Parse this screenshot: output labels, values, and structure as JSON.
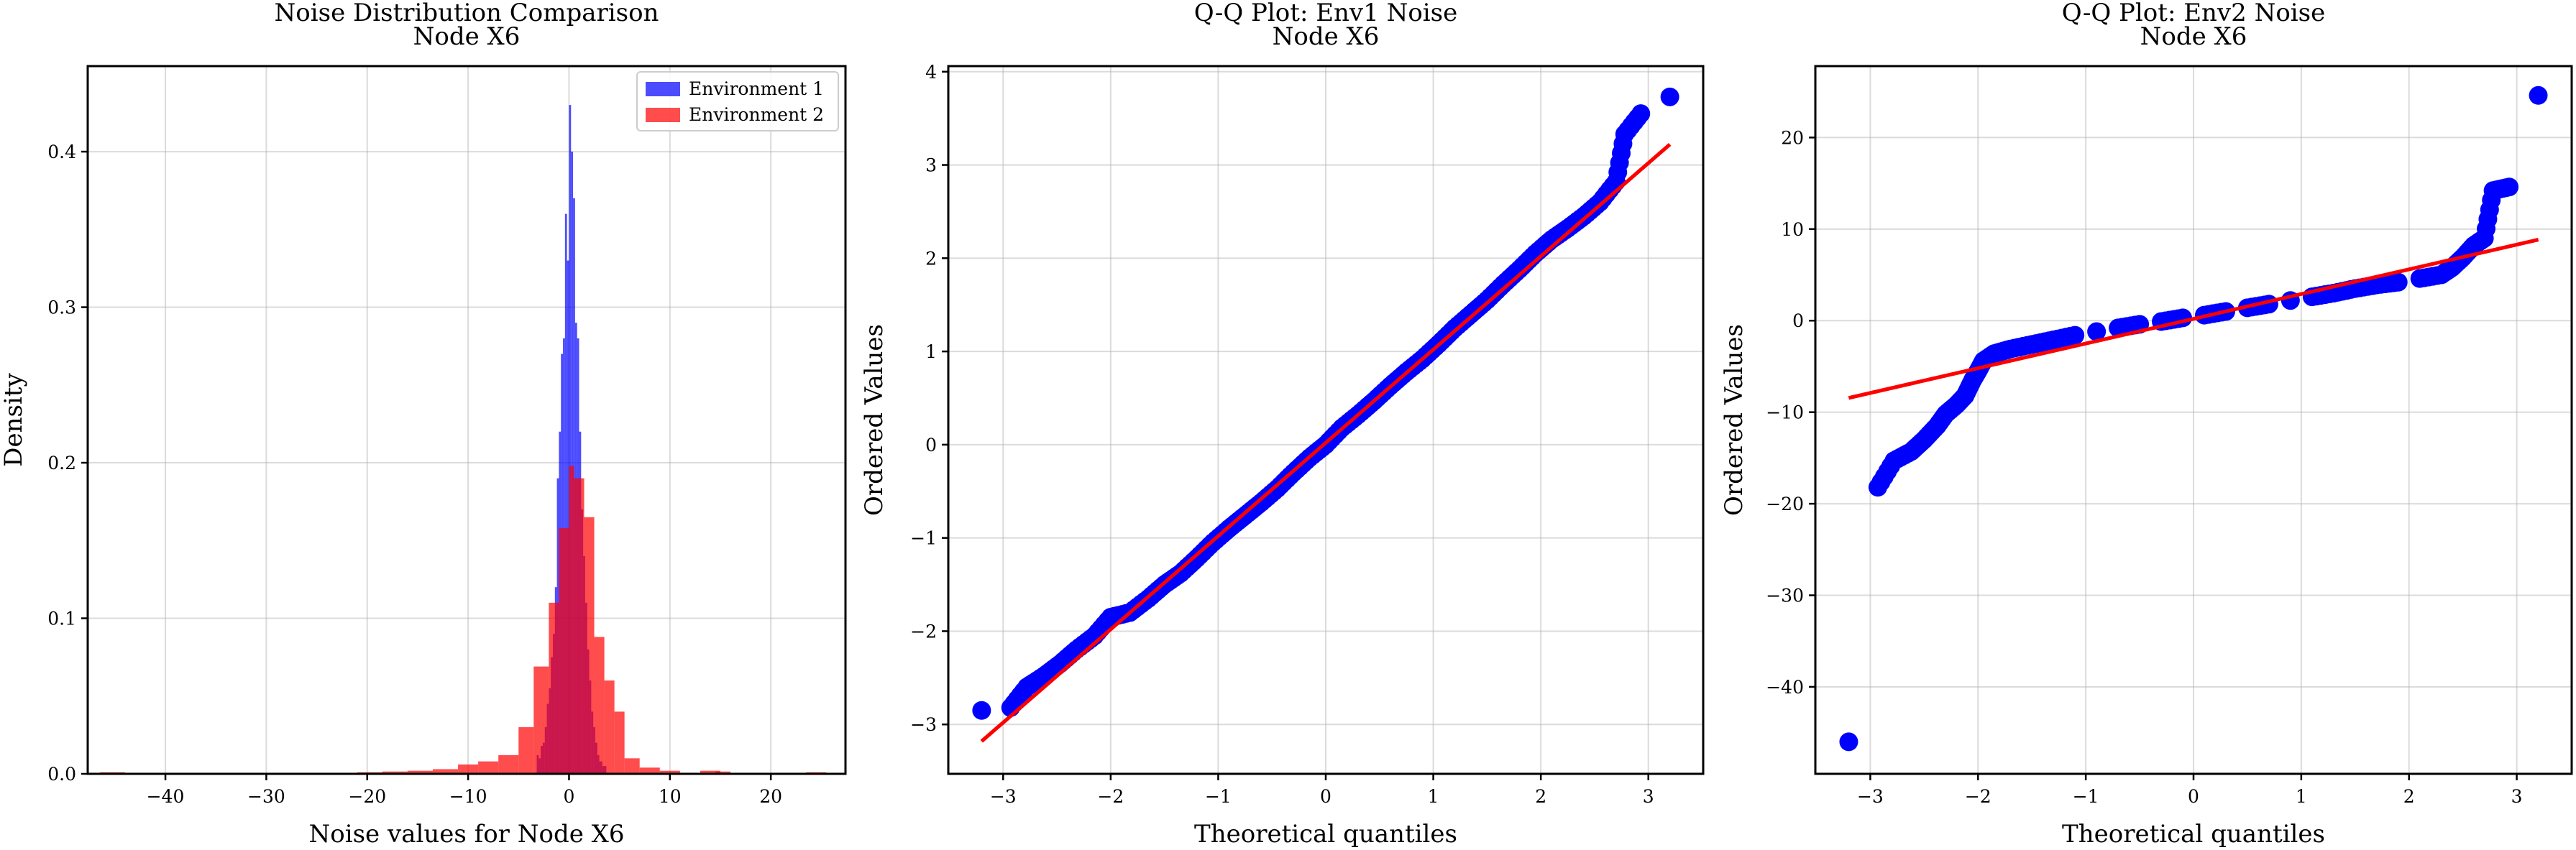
{
  "chart_data": [
    {
      "type": "histogram",
      "title": [
        "Noise Distribution Comparison",
        "Node X6"
      ],
      "xlabel": "Noise values for Node X6",
      "ylabel": "Density",
      "xlim": [
        -47.7,
        27.4
      ],
      "ylim": [
        0,
        0.455
      ],
      "xticks": [
        -40,
        -30,
        -20,
        -10,
        0,
        10,
        20
      ],
      "yticks": [
        0.0,
        0.1,
        0.2,
        0.3,
        0.4
      ],
      "grid": true,
      "legend_position": "upper right",
      "series": [
        {
          "name": "Environment 1",
          "color": "#0000ff",
          "alpha": 0.7,
          "bins": [
            [
              -3.2,
              -3.0,
              0.012
            ],
            [
              -3.0,
              -2.8,
              0.01
            ],
            [
              -2.8,
              -2.6,
              0.018
            ],
            [
              -2.6,
              -2.4,
              0.02
            ],
            [
              -2.4,
              -2.2,
              0.03
            ],
            [
              -2.2,
              -2.0,
              0.045
            ],
            [
              -2.0,
              -1.8,
              0.055
            ],
            [
              -1.8,
              -1.6,
              0.075
            ],
            [
              -1.6,
              -1.4,
              0.09
            ],
            [
              -1.4,
              -1.2,
              0.12
            ],
            [
              -1.2,
              -1.0,
              0.19
            ],
            [
              -1.0,
              -0.8,
              0.22
            ],
            [
              -0.8,
              -0.6,
              0.27
            ],
            [
              -0.6,
              -0.4,
              0.28
            ],
            [
              -0.4,
              -0.2,
              0.36
            ],
            [
              -0.2,
              0.0,
              0.33
            ],
            [
              0.0,
              0.2,
              0.43
            ],
            [
              0.2,
              0.4,
              0.4
            ],
            [
              0.4,
              0.6,
              0.37
            ],
            [
              0.6,
              0.8,
              0.29
            ],
            [
              0.8,
              1.0,
              0.28
            ],
            [
              1.0,
              1.2,
              0.22
            ],
            [
              1.2,
              1.4,
              0.17
            ],
            [
              1.4,
              1.6,
              0.14
            ],
            [
              1.6,
              1.8,
              0.11
            ],
            [
              1.8,
              2.0,
              0.08
            ],
            [
              2.0,
              2.2,
              0.06
            ],
            [
              2.2,
              2.4,
              0.04
            ],
            [
              2.4,
              2.6,
              0.03
            ],
            [
              2.6,
              2.8,
              0.02
            ],
            [
              2.8,
              3.0,
              0.012
            ],
            [
              3.0,
              3.3,
              0.008
            ],
            [
              3.3,
              3.7,
              0.005
            ]
          ]
        },
        {
          "name": "Environment 2",
          "color": "#ff0000",
          "alpha": 0.7,
          "bins": [
            [
              -46.5,
              -44.0,
              0.001
            ],
            [
              -21.0,
              -18.5,
              0.001
            ],
            [
              -18.5,
              -16.0,
              0.0015
            ],
            [
              -16.0,
              -13.5,
              0.002
            ],
            [
              -13.5,
              -11.0,
              0.003
            ],
            [
              -11.0,
              -9.0,
              0.006
            ],
            [
              -9.0,
              -7.0,
              0.008
            ],
            [
              -7.0,
              -5.0,
              0.012
            ],
            [
              -5.0,
              -3.5,
              0.03
            ],
            [
              -3.5,
              -2.0,
              0.069
            ],
            [
              -2.0,
              -1.0,
              0.11
            ],
            [
              -1.0,
              0.0,
              0.158
            ],
            [
              0.0,
              0.5,
              0.198
            ],
            [
              0.5,
              1.5,
              0.19
            ],
            [
              1.5,
              2.5,
              0.165
            ],
            [
              2.5,
              3.5,
              0.088
            ],
            [
              3.5,
              4.5,
              0.06
            ],
            [
              4.5,
              5.5,
              0.04
            ],
            [
              5.5,
              7.0,
              0.01
            ],
            [
              7.0,
              9.0,
              0.004
            ],
            [
              9.0,
              11.0,
              0.002
            ],
            [
              13.0,
              15.0,
              0.002
            ],
            [
              14.5,
              16.0,
              0.0015
            ],
            [
              23.5,
              25.5,
              0.001
            ]
          ]
        }
      ]
    },
    {
      "type": "scatter",
      "title": [
        "Q-Q Plot: Env1 Noise",
        "Node X6"
      ],
      "xlabel": "Theoretical quantiles",
      "ylabel": "Ordered Values",
      "xlim": [
        -3.51,
        3.51
      ],
      "ylim": [
        -3.53,
        4.06
      ],
      "xticks": [
        -3,
        -2,
        -1,
        0,
        1,
        2,
        3
      ],
      "yticks": [
        -3,
        -2,
        -1,
        0,
        1,
        2,
        3,
        4
      ],
      "grid": true,
      "fit_line": {
        "color": "#ff0000",
        "slope": 1.0,
        "intercept": 0.02,
        "x_range": [
          -3.2,
          3.2
        ]
      },
      "series": [
        {
          "color": "#0000ff",
          "x": [
            -3.2,
            -2.93,
            -2.78,
            -2.62,
            -2.47,
            -2.32,
            -2.15,
            -2.0,
            -1.82,
            -1.65,
            -1.5,
            -1.35,
            -1.2,
            -1.05,
            -0.9,
            -0.75,
            -0.6,
            -0.45,
            -0.3,
            -0.15,
            0.0,
            0.15,
            0.3,
            0.45,
            0.6,
            0.75,
            0.9,
            1.05,
            1.2,
            1.35,
            1.5,
            1.65,
            1.8,
            1.95,
            2.1,
            2.25,
            2.4,
            2.55,
            2.7,
            2.78,
            2.93,
            3.2
          ],
          "y": [
            -2.85,
            -2.82,
            -2.6,
            -2.48,
            -2.35,
            -2.2,
            -2.05,
            -1.85,
            -1.8,
            -1.65,
            -1.5,
            -1.38,
            -1.22,
            -1.05,
            -0.9,
            -0.76,
            -0.62,
            -0.47,
            -0.3,
            -0.14,
            0.0,
            0.18,
            0.32,
            0.47,
            0.63,
            0.78,
            0.92,
            1.08,
            1.25,
            1.4,
            1.55,
            1.72,
            1.88,
            2.05,
            2.2,
            2.32,
            2.45,
            2.6,
            2.82,
            3.33,
            3.55,
            3.73
          ]
        }
      ]
    },
    {
      "type": "scatter",
      "title": [
        "Q-Q Plot: Env2 Noise",
        "Node X6"
      ],
      "xlabel": "Theoretical quantiles",
      "ylabel": "Ordered Values",
      "xlim": [
        -3.51,
        3.51
      ],
      "ylim": [
        -49.5,
        27.8
      ],
      "xticks": [
        -3,
        -2,
        -1,
        0,
        1,
        2,
        3
      ],
      "yticks": [
        -40,
        -30,
        -20,
        -10,
        0,
        10,
        20
      ],
      "grid": true,
      "fit_line": {
        "color": "#ff0000",
        "slope": 2.7,
        "intercept": 0.2,
        "x_range": [
          -3.2,
          3.2
        ]
      },
      "series": [
        {
          "color": "#0000ff",
          "x": [
            -3.2,
            -2.93,
            -2.78,
            -2.62,
            -2.5,
            -2.38,
            -2.3,
            -2.2,
            -2.12,
            -2.05,
            -2.0,
            -1.95,
            -1.85,
            -1.7,
            -1.5,
            -1.3,
            -1.1,
            -0.9,
            -0.7,
            -0.5,
            -0.3,
            -0.1,
            0.1,
            0.3,
            0.5,
            0.7,
            0.9,
            1.1,
            1.3,
            1.5,
            1.7,
            1.9,
            2.1,
            2.3,
            2.4,
            2.5,
            2.6,
            2.7,
            2.78,
            2.93,
            3.2
          ],
          "y": [
            -46.0,
            -18.2,
            -15.3,
            -14.3,
            -13.0,
            -11.5,
            -10.2,
            -9.2,
            -8.2,
            -6.5,
            -5.5,
            -4.4,
            -3.6,
            -3.1,
            -2.6,
            -2.1,
            -1.6,
            -1.2,
            -0.8,
            -0.4,
            -0.1,
            0.3,
            0.6,
            1.0,
            1.4,
            1.8,
            2.2,
            2.6,
            3.0,
            3.5,
            3.9,
            4.2,
            4.6,
            5.0,
            5.8,
            6.9,
            8.2,
            9.0,
            14.2,
            14.6,
            24.6
          ]
        }
      ]
    }
  ]
}
